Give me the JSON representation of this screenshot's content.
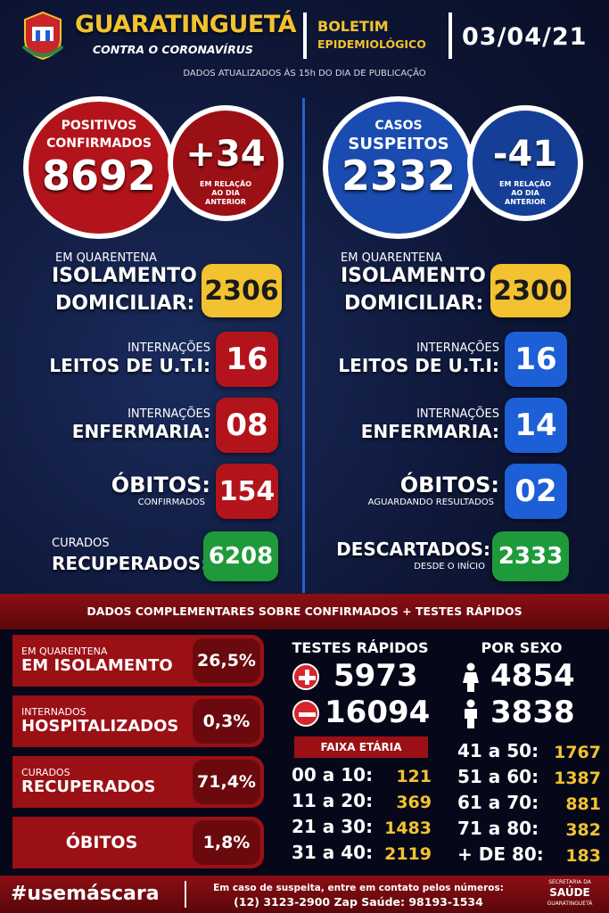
{
  "header": {
    "city": "GUARATINGUETÁ",
    "slogan": "CONTRA O CORONAVÍRUS",
    "bulletin_line1": "BOLETIM",
    "bulletin_line2": "EPIDEMIOLÓGICO",
    "date": "03/04/21",
    "updated": "DADOS ATUALIZADOS ÀS 15h DO DIA DE PUBLICAÇÃO"
  },
  "left": {
    "title1": "POSITIVOS",
    "title2": "CONFIRMADOS",
    "total": "8692",
    "delta": "+34",
    "delta_note1": "EM RELAÇÃO",
    "delta_note2": "AO DIA",
    "delta_note3": "ANTERIOR",
    "quarantine_small": "EM QUARENTENA",
    "quarantine_l1": "ISOLAMENTO",
    "quarantine_l2": "DOMICILIAR:",
    "quarantine_value": "2306",
    "icu_small": "INTERNAÇÕES",
    "icu_label": "LEITOS DE U.T.I:",
    "icu_value": "16",
    "ward_small": "INTERNAÇÕES",
    "ward_label": "ENFERMARIA:",
    "ward_value": "08",
    "deaths_label": "ÓBITOS:",
    "deaths_small": "CONFIRMADOS",
    "deaths_value": "154",
    "cured_small": "CURADOS",
    "cured_label": "RECUPERADOS:",
    "cured_value": "6208"
  },
  "right": {
    "title1": "CASOS",
    "title2": "SUSPEITOS",
    "total": "2332",
    "delta": "-41",
    "delta_note1": "EM RELAÇÃO",
    "delta_note2": "AO DIA",
    "delta_note3": "ANTERIOR",
    "quarantine_small": "EM QUARENTENA",
    "quarantine_l1": "ISOLAMENTO",
    "quarantine_l2": "DOMICILIAR:",
    "quarantine_value": "2300",
    "icu_small": "INTERNAÇÕES",
    "icu_label": "LEITOS DE U.T.I:",
    "icu_value": "16",
    "ward_small": "INTERNAÇÕES",
    "ward_label": "ENFERMARIA:",
    "ward_value": "14",
    "deaths_label": "ÓBITOS:",
    "deaths_small": "AGUARDANDO RESULTADOS",
    "deaths_value": "02",
    "discarded_label": "DESCARTADOS:",
    "discarded_small": "DESDE O INÍCIO",
    "discarded_value": "2333"
  },
  "complement": {
    "banner": "DADOS COMPLEMENTARES SOBRE CONFIRMADOS + TESTES RÁPIDOS",
    "bars": [
      {
        "small": "EM QUARENTENA",
        "big": "EM ISOLAMENTO",
        "pct": "26,5%"
      },
      {
        "small": "INTERNADOS",
        "big": "HOSPITALIZADOS",
        "pct": "0,3%"
      },
      {
        "small": "CURADOS",
        "big": "RECUPERADOS",
        "pct": "71,4%"
      },
      {
        "small": "",
        "big": "ÓBITOS",
        "pct": "1,8%"
      }
    ],
    "rapid_title": "TESTES RÁPIDOS",
    "rapid_pos": "5973",
    "rapid_neg": "16094",
    "sex_title": "POR SEXO",
    "female": "4854",
    "male": "3838",
    "age_title": "FAIXA ETÁRIA",
    "ages_left": [
      {
        "range": "00 a 10:",
        "value": "121"
      },
      {
        "range": "11 a 20:",
        "value": "369"
      },
      {
        "range": "21 a 30:",
        "value": "1483"
      },
      {
        "range": "31 a 40:",
        "value": "2119"
      }
    ],
    "ages_right": [
      {
        "range": "41 a 50:",
        "value": "1767"
      },
      {
        "range": "51 a 60:",
        "value": "1387"
      },
      {
        "range": "61 a 70:",
        "value": "881"
      },
      {
        "range": "71 a 80:",
        "value": "382"
      },
      {
        "range": "+ DE 80:",
        "value": "183"
      }
    ]
  },
  "footer": {
    "hashtag": "#usemáscara",
    "contact1": "Em caso de suspeita, entre em contato pelos números:",
    "contact2": "(12) 3123-2900 Zap Saúde: 98193-1534",
    "logo_small": "SECRETARIA DA",
    "logo_big": "SAÚDE",
    "logo_city": "GUARATINGUETÁ"
  },
  "colors": {
    "red": "#b3141b",
    "blue": "#1d5fd6",
    "yellow": "#f2c230",
    "green": "#1e9a3a"
  }
}
